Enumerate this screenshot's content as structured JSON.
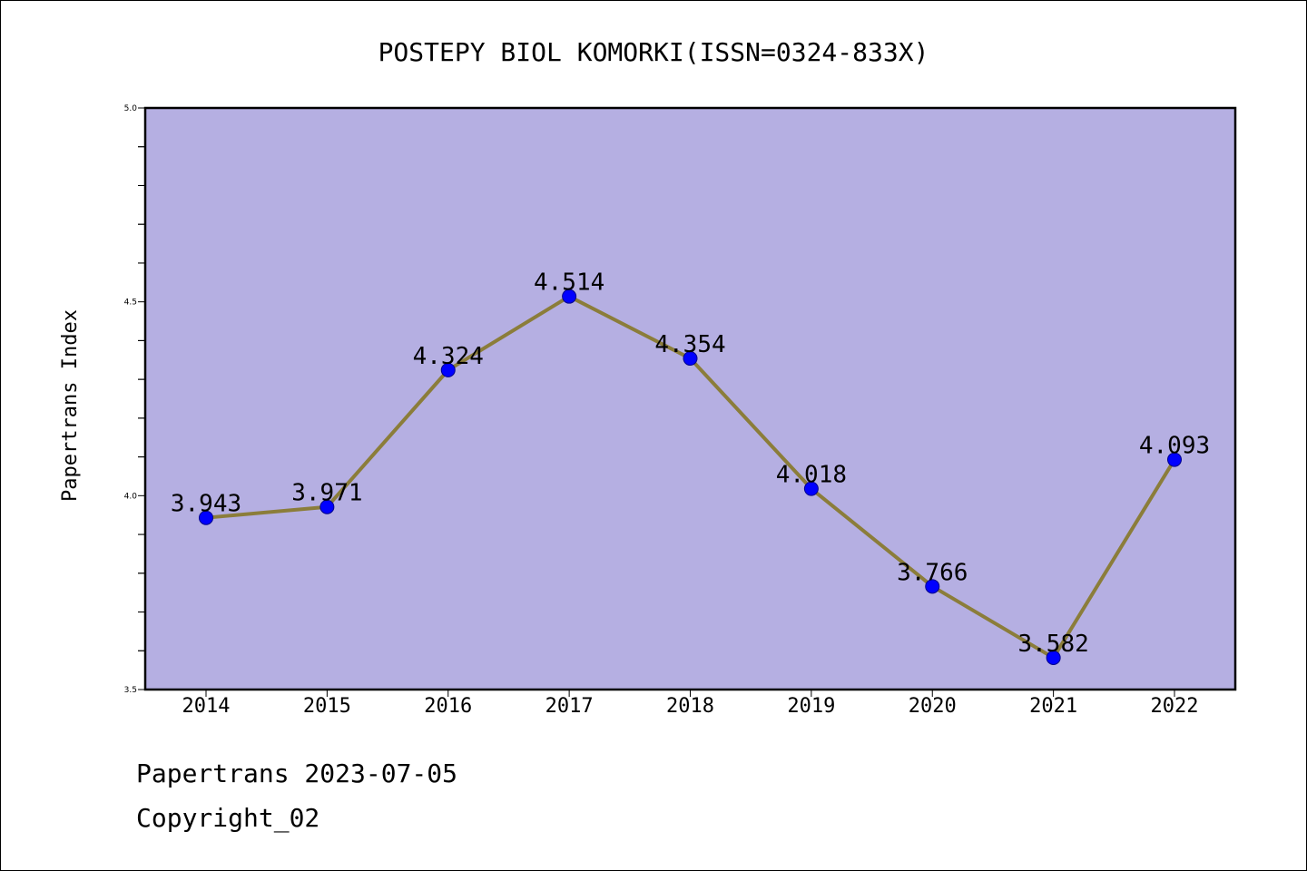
{
  "chart_data": {
    "type": "line",
    "title": "POSTEPY BIOL KOMORKI(ISSN=0324-833X)",
    "xlabel": "",
    "ylabel": "Papertrans Index",
    "categories": [
      "2014",
      "2015",
      "2016",
      "2017",
      "2018",
      "2019",
      "2020",
      "2021",
      "2022"
    ],
    "series": [
      {
        "values": [
          3.943,
          3.971,
          4.324,
          4.514,
          4.354,
          4.018,
          3.766,
          3.582,
          4.093
        ],
        "labels": [
          "3.943",
          "3.971",
          "4.324",
          "4.514",
          "4.354",
          "4.018",
          "3.766",
          "3.582",
          "4.093"
        ],
        "line_color": "#8B7D3A",
        "marker_color": "#0000FF"
      }
    ],
    "ylim": [
      3.5,
      5.0
    ],
    "y_ticks": [
      "3.5",
      "4.0",
      "4.5",
      "5.0"
    ],
    "plot_background": "#B5AFE2",
    "grid": false,
    "legend": "none"
  },
  "footer": {
    "line1": "Papertrans 2023-07-05",
    "line2": "Copyright_02"
  }
}
